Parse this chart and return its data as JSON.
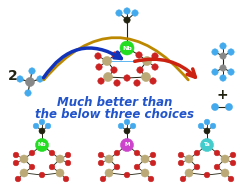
{
  "bg_color": "#ffffff",
  "text_main_line1": "Much better than",
  "text_main_line2": "the below three choices",
  "text_main_color": "#2255cc",
  "text_main_fontsize": 8.5,
  "text_2": "2",
  "text_plus": "+",
  "nb_color": "#22dd22",
  "mo_color": "#cc44cc",
  "ta_color": "#44cccc",
  "atom_red": "#cc2222",
  "atom_blue": "#44aaee",
  "atom_dark": "#222211",
  "atom_gray": "#888888",
  "atom_tan": "#bbaa77",
  "arrow_blue": "#1133bb",
  "arrow_red": "#cc2211",
  "arrow_gold": "#bb8800",
  "fig_width": 2.53,
  "fig_height": 1.89,
  "dpi": 100
}
